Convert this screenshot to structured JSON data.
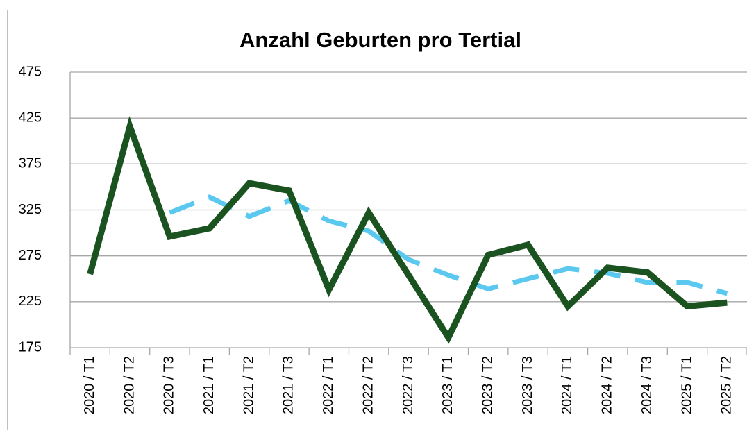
{
  "chart_data": {
    "type": "line",
    "title": "Anzahl Geburten pro Tertial",
    "categories": [
      "2020 / T1",
      "2020 / T2",
      "2020 / T3",
      "2021 / T1",
      "2021 / T2",
      "2021 / T3",
      "2022 / T1",
      "2022 / T2",
      "2022 / T3",
      "2023 / T1",
      "2023 / T2",
      "2023 / T3",
      "2024 / T1",
      "2024 / T2",
      "2024 / T3",
      "2025 / T1",
      "2025 / T2"
    ],
    "series": [
      {
        "color": "#1a5220",
        "style": "solid",
        "values": [
          255,
          416,
          296,
          305,
          354,
          346,
          238,
          322,
          254,
          186,
          276,
          287,
          220,
          262,
          257,
          220,
          224
        ]
      },
      {
        "color": "#5bc8f0",
        "style": "dashed",
        "values": [
          null,
          null,
          322,
          339,
          318,
          335,
          313,
          302,
          271,
          254,
          239,
          250,
          261,
          256,
          246,
          246,
          234
        ]
      }
    ],
    "ylim": [
      175,
      475
    ],
    "yticks": [
      175,
      225,
      275,
      325,
      375,
      425,
      475
    ],
    "grid": true
  }
}
